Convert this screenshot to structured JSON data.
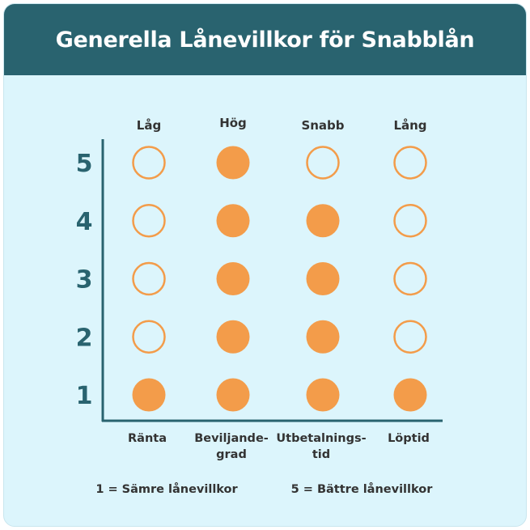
{
  "chart_data": {
    "type": "dot-matrix",
    "title": "Generella Lånevillkor för Snabblån",
    "categories": [
      [
        "Ränta"
      ],
      [
        "Beviljande-",
        "grad"
      ],
      [
        "Utbetalnings-",
        "tid"
      ],
      [
        "Löptid"
      ]
    ],
    "top_labels": [
      "Låg",
      "Hög",
      "Snabb",
      "Lång"
    ],
    "values": [
      1,
      5,
      4,
      1
    ],
    "yticks": [
      1,
      2,
      3,
      4,
      5
    ],
    "ylim": [
      1,
      5
    ],
    "legend": {
      "low": "1 = Sämre lånevillkor",
      "high": "5 = Bättre lånevillkor"
    },
    "colors": {
      "header": "#29636f",
      "background": "#dcf5fc",
      "dot": "#f39c4a",
      "axis": "#29636f",
      "ytick": "#29636f"
    }
  }
}
